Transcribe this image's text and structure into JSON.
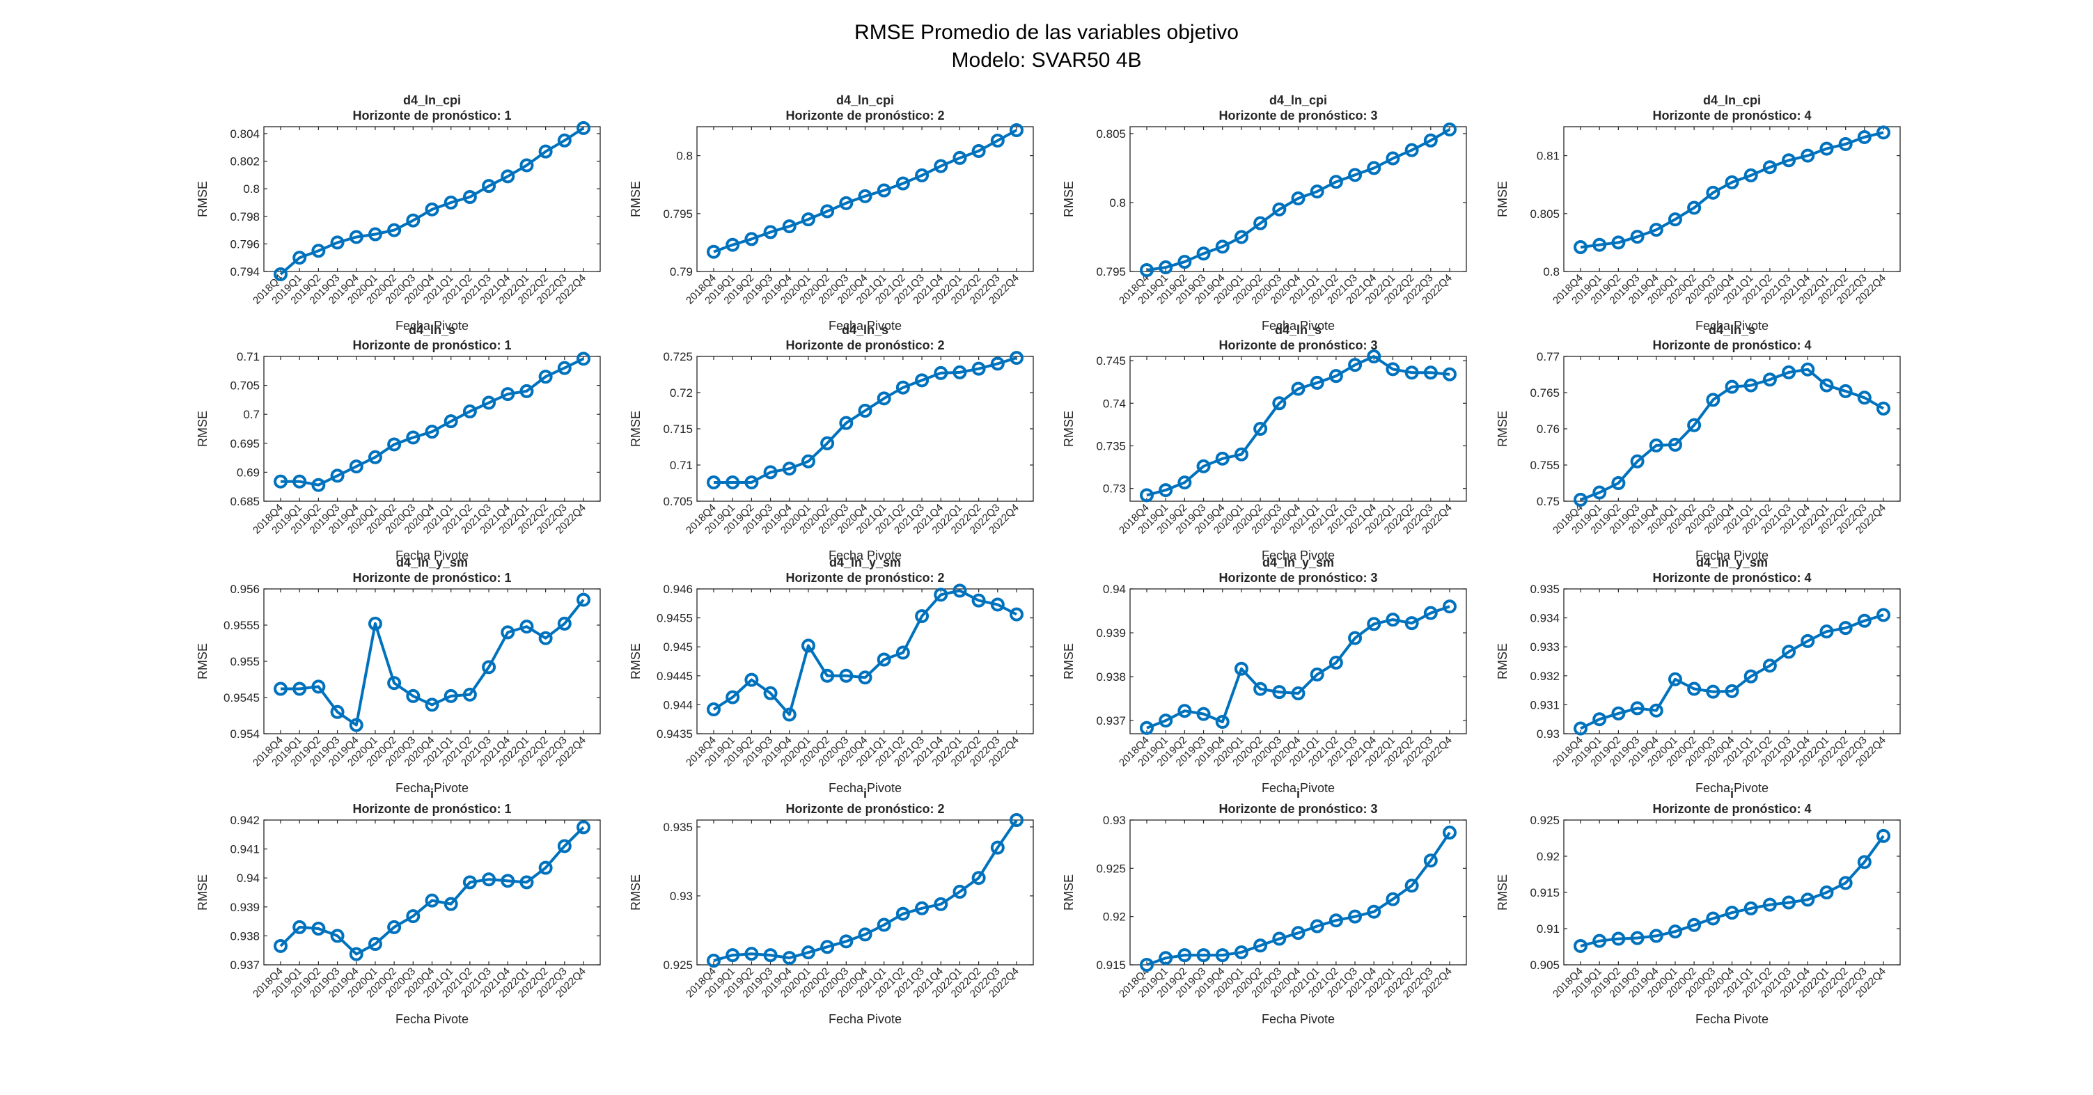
{
  "suptitle": [
    "RMSE Promedio de las variables objetivo",
    "Modelo: SVAR50 4B"
  ],
  "colors": {
    "line": "#0072BD",
    "axis": "#262626"
  },
  "chart_data": [
    {
      "type": "line",
      "title": "d4_ln_cpi",
      "subtitle": "Horizonte de pronóstico: 1",
      "xlabel": "Fecha Pivote",
      "ylabel": "RMSE",
      "ylim": [
        0.794,
        0.8045
      ],
      "yticks": [
        "0.794",
        "0.796",
        "0.798",
        "0.8",
        "0.802",
        "0.804"
      ],
      "values": [
        0.7938,
        0.795,
        0.7955,
        0.7961,
        0.7965,
        0.7967,
        0.797,
        0.7977,
        0.7985,
        0.799,
        0.7994,
        0.8002,
        0.8009,
        0.8017,
        0.8027,
        0.8035,
        0.8044
      ]
    },
    {
      "type": "line",
      "title": "d4_ln_cpi",
      "subtitle": "Horizonte de pronóstico: 2",
      "xlabel": "Fecha Pivote",
      "ylabel": "RMSE",
      "ylim": [
        0.79,
        0.8025
      ],
      "yticks": [
        "0.79",
        "0.795",
        "0.8"
      ],
      "values": [
        0.7917,
        0.7923,
        0.7928,
        0.7934,
        0.7939,
        0.7945,
        0.7952,
        0.7959,
        0.7965,
        0.797,
        0.7976,
        0.7983,
        0.7991,
        0.7998,
        0.8004,
        0.8013,
        0.8022
      ]
    },
    {
      "type": "line",
      "title": "d4_ln_cpi",
      "subtitle": "Horizonte de pronóstico: 3",
      "xlabel": "Fecha Pivote",
      "ylabel": "RMSE",
      "ylim": [
        0.795,
        0.8055
      ],
      "yticks": [
        "0.795",
        "0.8",
        "0.805"
      ],
      "values": [
        0.7951,
        0.7953,
        0.7957,
        0.7963,
        0.7968,
        0.7975,
        0.7985,
        0.7995,
        0.8003,
        0.8008,
        0.8015,
        0.802,
        0.8025,
        0.8032,
        0.8038,
        0.8045,
        0.8053
      ]
    },
    {
      "type": "line",
      "title": "d4_ln_cpi",
      "subtitle": "Horizonte de pronóstico: 4",
      "xlabel": "Fecha Pivote",
      "ylabel": "RMSE",
      "ylim": [
        0.8,
        0.8125
      ],
      "yticks": [
        "0.8",
        "0.805",
        "0.81"
      ],
      "values": [
        0.8021,
        0.8023,
        0.8025,
        0.803,
        0.8036,
        0.8045,
        0.8055,
        0.8068,
        0.8077,
        0.8083,
        0.809,
        0.8096,
        0.81,
        0.8106,
        0.811,
        0.8116,
        0.812
      ]
    },
    {
      "type": "line",
      "title": "d4_ln_s",
      "subtitle": "Horizonte de pronóstico: 1",
      "xlabel": "Fecha Pivote",
      "ylabel": "RMSE",
      "ylim": [
        0.685,
        0.71
      ],
      "yticks": [
        "0.685",
        "0.69",
        "0.695",
        "0.7",
        "0.705",
        "0.71"
      ],
      "values": [
        0.6884,
        0.6884,
        0.6878,
        0.6894,
        0.691,
        0.6926,
        0.6948,
        0.696,
        0.697,
        0.6988,
        0.7005,
        0.702,
        0.7035,
        0.704,
        0.7065,
        0.708,
        0.7096
      ]
    },
    {
      "type": "line",
      "title": "d4_ln_s",
      "subtitle": "Horizonte de pronóstico: 2",
      "xlabel": "Fecha Pivote",
      "ylabel": "RMSE",
      "ylim": [
        0.705,
        0.725
      ],
      "yticks": [
        "0.705",
        "0.71",
        "0.715",
        "0.72",
        "0.725"
      ],
      "values": [
        0.7076,
        0.7076,
        0.7076,
        0.709,
        0.7095,
        0.7105,
        0.713,
        0.7158,
        0.7175,
        0.7192,
        0.7207,
        0.7217,
        0.7227,
        0.7228,
        0.7233,
        0.724,
        0.7248
      ]
    },
    {
      "type": "line",
      "title": "d4_ln_s",
      "subtitle": "Horizonte de pronóstico: 3",
      "xlabel": "Fecha Pivote",
      "ylabel": "RMSE",
      "ylim": [
        0.7285,
        0.7455
      ],
      "yticks": [
        "0.73",
        "0.735",
        "0.74",
        "0.745"
      ],
      "values": [
        0.7292,
        0.7298,
        0.7307,
        0.7326,
        0.7335,
        0.734,
        0.737,
        0.74,
        0.7417,
        0.7424,
        0.7432,
        0.7445,
        0.7455,
        0.744,
        0.7436,
        0.7436,
        0.7434
      ]
    },
    {
      "type": "line",
      "title": "d4_ln_s",
      "subtitle": "Horizonte de pronóstico: 4",
      "xlabel": "Fecha Pivote",
      "ylabel": "RMSE",
      "ylim": [
        0.75,
        0.77
      ],
      "yticks": [
        "0.75",
        "0.755",
        "0.76",
        "0.765",
        "0.77"
      ],
      "values": [
        0.7502,
        0.7512,
        0.7525,
        0.7555,
        0.7577,
        0.7578,
        0.7605,
        0.764,
        0.7658,
        0.766,
        0.7668,
        0.7678,
        0.7682,
        0.766,
        0.7652,
        0.7643,
        0.7628
      ]
    },
    {
      "type": "line",
      "title": "d4_ln_y_sm",
      "subtitle": "Horizonte de pronóstico: 1",
      "xlabel": "Fecha Pivote",
      "ylabel": "RMSE",
      "ylim": [
        0.954,
        0.956
      ],
      "yticks": [
        "0.954",
        "0.9545",
        "0.955",
        "0.9555",
        "0.956"
      ],
      "values": [
        0.95462,
        0.95462,
        0.95465,
        0.9543,
        0.95412,
        0.95552,
        0.9547,
        0.95452,
        0.9544,
        0.95452,
        0.95454,
        0.95492,
        0.9554,
        0.95548,
        0.95532,
        0.95552,
        0.95585
      ]
    },
    {
      "type": "line",
      "title": "d4_ln_y_sm",
      "subtitle": "Horizonte de pronóstico: 2",
      "xlabel": "Fecha Pivote",
      "ylabel": "RMSE",
      "ylim": [
        0.9435,
        0.946
      ],
      "yticks": [
        "0.9435",
        "0.944",
        "0.9445",
        "0.945",
        "0.9455",
        "0.946"
      ],
      "values": [
        0.94392,
        0.94413,
        0.94443,
        0.9442,
        0.94383,
        0.94502,
        0.9445,
        0.9445,
        0.94447,
        0.94478,
        0.9449,
        0.94553,
        0.9459,
        0.94597,
        0.9458,
        0.94573,
        0.94556
      ]
    },
    {
      "type": "line",
      "title": "d4_ln_y_sm",
      "subtitle": "Horizonte de pronóstico: 3",
      "xlabel": "Fecha Pivote",
      "ylabel": "RMSE",
      "ylim": [
        0.9367,
        0.94
      ],
      "yticks": [
        "0.937",
        "0.938",
        "0.939",
        "0.94"
      ],
      "values": [
        0.93683,
        0.937,
        0.93722,
        0.93715,
        0.93697,
        0.93818,
        0.93772,
        0.93765,
        0.93762,
        0.93805,
        0.93832,
        0.93888,
        0.9392,
        0.9393,
        0.93922,
        0.93945,
        0.9396
      ]
    },
    {
      "type": "line",
      "title": "d4_ln_y_sm",
      "subtitle": "Horizonte de pronóstico: 4",
      "xlabel": "Fecha Pivote",
      "ylabel": "RMSE",
      "ylim": [
        0.93,
        0.935
      ],
      "yticks": [
        "0.93",
        "0.931",
        "0.932",
        "0.933",
        "0.934",
        "0.935"
      ],
      "values": [
        0.93018,
        0.9305,
        0.9307,
        0.93088,
        0.9308,
        0.93188,
        0.93155,
        0.93145,
        0.93147,
        0.93198,
        0.93235,
        0.93283,
        0.9332,
        0.93353,
        0.93365,
        0.9339,
        0.9341
      ]
    },
    {
      "type": "line",
      "title": "i",
      "subtitle": "Horizonte de pronóstico: 1",
      "xlabel": "Fecha Pivote",
      "ylabel": "RMSE",
      "ylim": [
        0.937,
        0.942
      ],
      "yticks": [
        "0.937",
        "0.938",
        "0.939",
        "0.94",
        "0.941",
        "0.942"
      ],
      "values": [
        0.93765,
        0.9383,
        0.93825,
        0.938,
        0.93737,
        0.93772,
        0.9383,
        0.93868,
        0.93922,
        0.9391,
        0.93985,
        0.93995,
        0.9399,
        0.93985,
        0.94035,
        0.9411,
        0.94175
      ]
    },
    {
      "type": "line",
      "title": "i",
      "subtitle": "Horizonte de pronóstico: 2",
      "xlabel": "Fecha Pivote",
      "ylabel": "RMSE",
      "ylim": [
        0.925,
        0.9355
      ],
      "yticks": [
        "0.925",
        "0.93",
        "0.935"
      ],
      "values": [
        0.9253,
        0.9257,
        0.9258,
        0.9257,
        0.9255,
        0.9259,
        0.9263,
        0.9267,
        0.9272,
        0.9279,
        0.9287,
        0.9291,
        0.9294,
        0.9303,
        0.9313,
        0.9335,
        0.9355
      ]
    },
    {
      "type": "line",
      "title": "i",
      "subtitle": "Horizonte de pronóstico: 3",
      "xlabel": "Fecha Pivote",
      "ylabel": "RMSE",
      "ylim": [
        0.915,
        0.93
      ],
      "yticks": [
        "0.915",
        "0.92",
        "0.925",
        "0.93"
      ],
      "values": [
        0.915,
        0.9157,
        0.916,
        0.916,
        0.916,
        0.9163,
        0.917,
        0.9177,
        0.9183,
        0.919,
        0.9196,
        0.92,
        0.9205,
        0.9218,
        0.9232,
        0.9258,
        0.9287
      ]
    },
    {
      "type": "line",
      "title": "i",
      "subtitle": "Horizonte de pronóstico: 4",
      "xlabel": "Fecha Pivote",
      "ylabel": "RMSE",
      "ylim": [
        0.905,
        0.925
      ],
      "yticks": [
        "0.905",
        "0.91",
        "0.915",
        "0.92",
        "0.925"
      ],
      "values": [
        0.9076,
        0.9083,
        0.9086,
        0.9087,
        0.909,
        0.9096,
        0.9105,
        0.9114,
        0.9122,
        0.9128,
        0.9133,
        0.9136,
        0.914,
        0.915,
        0.9163,
        0.9192,
        0.9228
      ]
    }
  ],
  "x_categories": [
    "2018Q4",
    "2019Q1",
    "2019Q2",
    "2019Q3",
    "2019Q4",
    "2020Q1",
    "2020Q2",
    "2020Q3",
    "2020Q4",
    "2021Q1",
    "2021Q2",
    "2021Q3",
    "2021Q4",
    "2022Q1",
    "2022Q2",
    "2022Q3",
    "2022Q4"
  ]
}
